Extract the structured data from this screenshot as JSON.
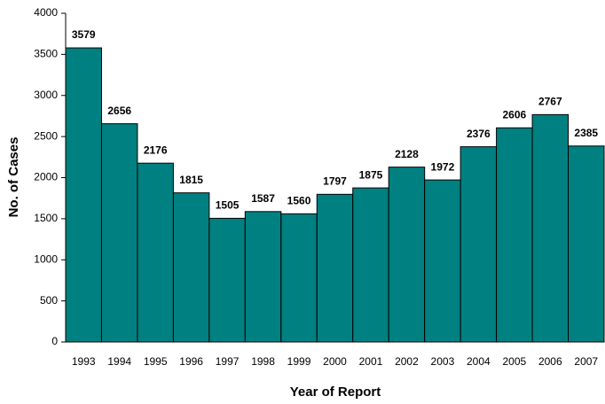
{
  "chart_data": {
    "type": "bar",
    "x_label": "Year of Report",
    "y_label": "No. of Cases",
    "categories": [
      "1993",
      "1994",
      "1995",
      "1996",
      "1997",
      "1998",
      "1999",
      "2000",
      "2001",
      "2002",
      "2003",
      "2004",
      "2005",
      "2006",
      "2007"
    ],
    "values": [
      3579,
      2656,
      2176,
      1815,
      1505,
      1587,
      1560,
      1797,
      1875,
      2128,
      1972,
      2376,
      2606,
      2767,
      2385
    ],
    "color": "#008080",
    "ylim": [
      0,
      4000
    ],
    "yticks": [
      0,
      500,
      1000,
      1500,
      2000,
      2500,
      3000,
      3500,
      4000
    ]
  }
}
